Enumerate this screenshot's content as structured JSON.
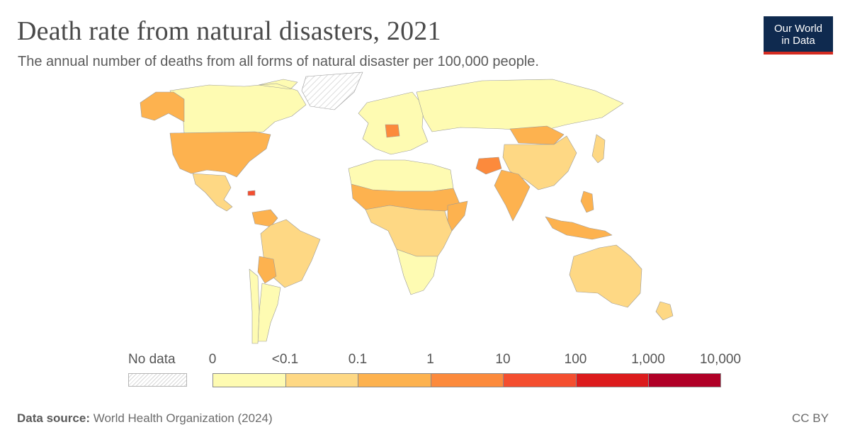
{
  "header": {
    "title": "Death rate from natural disasters, 2021",
    "subtitle": "The annual number of deaths from all forms of natural disaster per 100,000 people."
  },
  "logo": {
    "line1": "Our World",
    "line2": "in Data",
    "bg": "#0f2a4f",
    "accent": "#d42b21"
  },
  "legend": {
    "no_data_label": "No data",
    "ticks": [
      "0",
      "<0.1",
      "0.1",
      "1",
      "10",
      "100",
      "1,000",
      "10,000"
    ],
    "colors": [
      "#fefbb2",
      "#fed884",
      "#fdb24f",
      "#fc8a3c",
      "#f44e2f",
      "#dc1b1c",
      "#b00026"
    ]
  },
  "footer": {
    "source_label": "Data source:",
    "source_text": "World Health Organization (2024)",
    "license": "CC BY"
  },
  "chart_data": {
    "type": "choropleth",
    "year": 2021,
    "bins": [
      "0",
      "<0.1",
      "0.1-1",
      "1-10",
      "10-100",
      "100-1,000",
      "1,000-10,000"
    ],
    "regions": [
      {
        "name": "Canada",
        "bin": 0
      },
      {
        "name": "Alaska (United States)",
        "bin": 2
      },
      {
        "name": "United States",
        "bin": 2
      },
      {
        "name": "Greenland",
        "bin": -1
      },
      {
        "name": "Mexico",
        "bin": 1
      },
      {
        "name": "Haiti",
        "bin": 4
      },
      {
        "name": "Venezuela",
        "bin": 2
      },
      {
        "name": "Brazil",
        "bin": 1
      },
      {
        "name": "Bolivia",
        "bin": 2
      },
      {
        "name": "Argentina",
        "bin": 0
      },
      {
        "name": "Chile",
        "bin": 0
      },
      {
        "name": "Europe",
        "bin": 0
      },
      {
        "name": "Germany",
        "bin": 3
      },
      {
        "name": "Russia",
        "bin": 0
      },
      {
        "name": "Mongolia",
        "bin": 2
      },
      {
        "name": "China",
        "bin": 1
      },
      {
        "name": "India",
        "bin": 2
      },
      {
        "name": "Afghanistan",
        "bin": 3
      },
      {
        "name": "Indonesia",
        "bin": 2
      },
      {
        "name": "Philippines",
        "bin": 2
      },
      {
        "name": "Australia",
        "bin": 1
      },
      {
        "name": "Northern Africa",
        "bin": 0
      },
      {
        "name": "Sahel",
        "bin": 2
      },
      {
        "name": "Somalia",
        "bin": 2
      },
      {
        "name": "Central Africa",
        "bin": 1
      },
      {
        "name": "Southern Africa",
        "bin": 0
      },
      {
        "name": "New Zealand",
        "bin": 1
      },
      {
        "name": "Japan",
        "bin": 1
      }
    ]
  }
}
